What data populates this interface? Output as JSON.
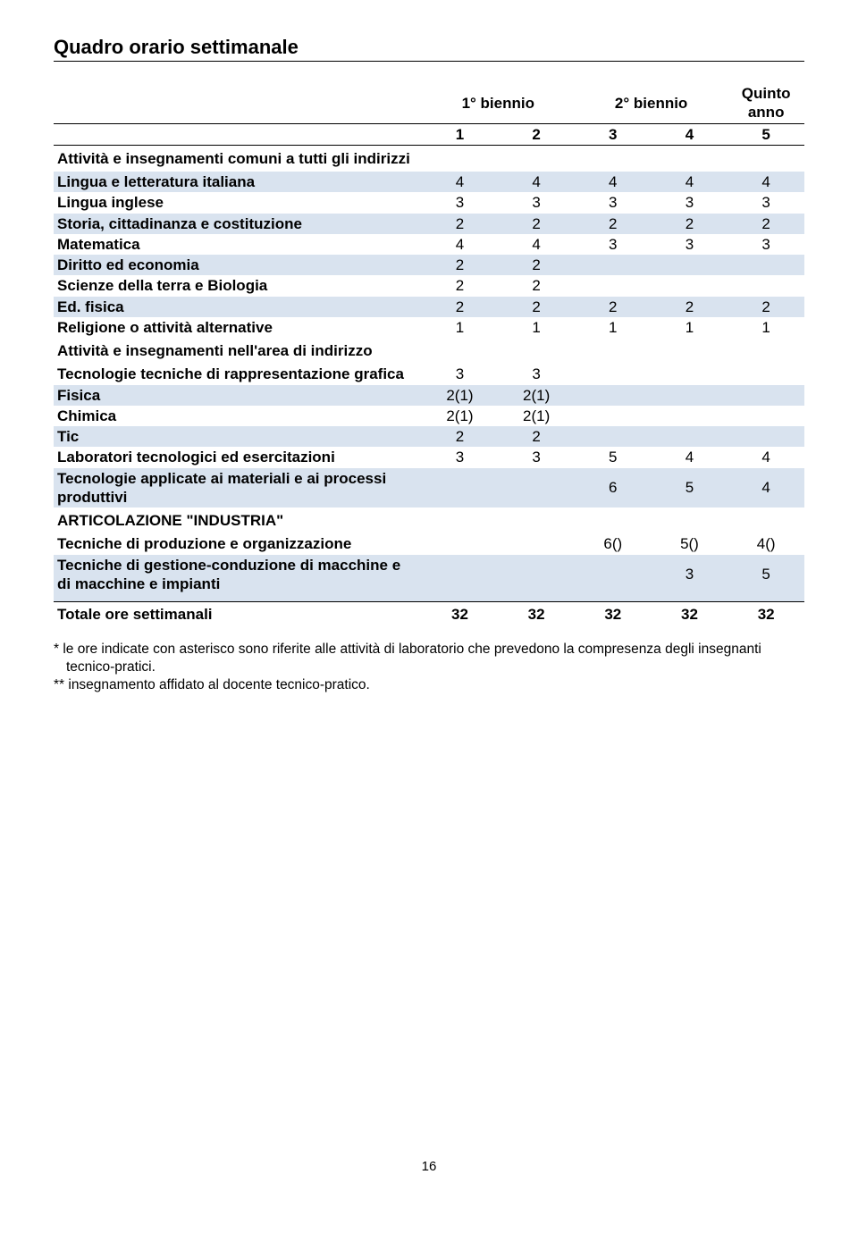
{
  "title": "Quadro orario settimanale",
  "headers": {
    "col1": "1° biennio",
    "col2": "2° biennio",
    "col3": "Quinto anno"
  },
  "subhead": [
    "1",
    "2",
    "3",
    "4",
    "5"
  ],
  "section1": "Attività e insegnamenti comuni a tutti gli indirizzi",
  "section2": "Attività e insegnamenti nell'area di indirizzo",
  "section3": "ARTICOLAZIONE \"INDUSTRIA\"",
  "rows1": [
    {
      "label": "Lingua e letteratura italiana",
      "v": [
        "4",
        "4",
        "4",
        "4",
        "4"
      ],
      "shade": true
    },
    {
      "label": "Lingua inglese",
      "v": [
        "3",
        "3",
        "3",
        "3",
        "3"
      ],
      "shade": false
    },
    {
      "label": "Storia, cittadinanza e costituzione",
      "v": [
        "2",
        "2",
        "2",
        "2",
        "2"
      ],
      "shade": true
    },
    {
      "label": "Matematica",
      "v": [
        "4",
        "4",
        "3",
        "3",
        "3"
      ],
      "shade": false
    },
    {
      "label": "Diritto ed economia",
      "v": [
        "2",
        "2",
        "",
        "",
        ""
      ],
      "shade": true
    },
    {
      "label": "Scienze della terra e Biologia",
      "v": [
        "2",
        "2",
        "",
        "",
        ""
      ],
      "shade": false
    },
    {
      "label": "Ed. fisica",
      "v": [
        "2",
        "2",
        "2",
        "2",
        "2"
      ],
      "shade": true
    },
    {
      "label": "Religione o attività alternative",
      "v": [
        "1",
        "1",
        "1",
        "1",
        "1"
      ],
      "shade": false
    }
  ],
  "rows2": [
    {
      "label": "Tecnologie tecniche di rappresentazione grafica",
      "v": [
        "3",
        "3",
        "",
        "",
        ""
      ],
      "shade": false
    },
    {
      "label": "Fisica",
      "v": [
        "2(1)",
        "2(1)",
        "",
        "",
        ""
      ],
      "shade": true
    },
    {
      "label": "Chimica",
      "v": [
        "2(1)",
        "2(1)",
        "",
        "",
        ""
      ],
      "shade": false
    },
    {
      "label": "Tic",
      "v": [
        "2",
        "2",
        "",
        "",
        ""
      ],
      "shade": true
    },
    {
      "label": "Laboratori tecnologici ed esercitazioni",
      "v": [
        "3",
        "3",
        "5",
        "4",
        "4"
      ],
      "shade": false
    },
    {
      "label": "Tecnologie applicate ai materiali e ai processi produttivi",
      "v": [
        "",
        "",
        "6",
        "5",
        "4"
      ],
      "shade": true
    }
  ],
  "rows3": [
    {
      "label": "Tecniche di produzione e organizzazione",
      "v": [
        "",
        "",
        "6()",
        "5()",
        "4()"
      ],
      "shade": false
    },
    {
      "label": "Tecniche di gestione-conduzione di macchine e di macchine e impianti",
      "v": [
        "",
        "",
        "",
        "3",
        "5"
      ],
      "shade": true
    }
  ],
  "total": {
    "label": "Totale ore settimanali",
    "v": [
      "32",
      "32",
      "32",
      "32",
      "32"
    ]
  },
  "footnote1": "*   le ore indicate con asterisco sono riferite alle attività di laboratorio che prevedono la compresenza degli insegnanti tecnico-pratici.",
  "footnote2": "** insegnamento affidato al docente tecnico-pratico.",
  "pagenum": "16",
  "colors": {
    "shade": "#d9e3ef",
    "text": "#000000",
    "bg": "#ffffff"
  }
}
